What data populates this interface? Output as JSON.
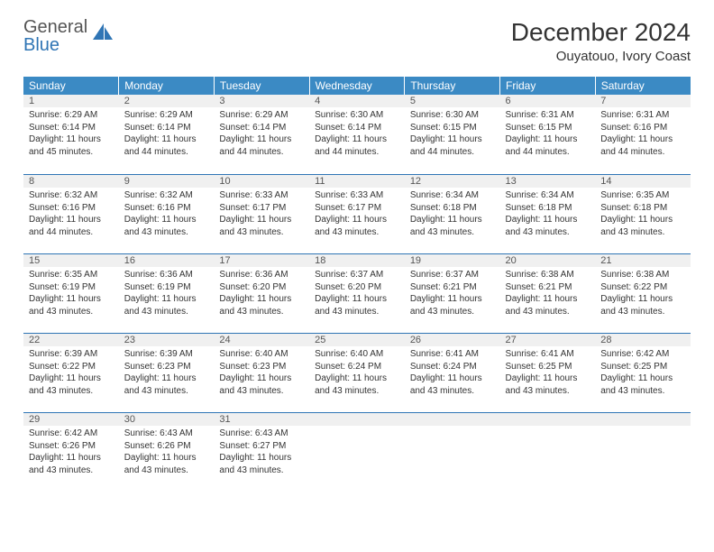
{
  "brand": {
    "line1": "General",
    "line2": "Blue"
  },
  "title": "December 2024",
  "location": "Ouyatouo, Ivory Coast",
  "colors": {
    "header_bg": "#3b8ac4",
    "header_fg": "#ffffff",
    "daynum_bg": "#f0f0f0",
    "rule": "#2f75b5",
    "text": "#333333"
  },
  "typography": {
    "month_title_pt": 28,
    "location_pt": 15,
    "dayhead_pt": 12,
    "body_pt": 10
  },
  "day_headers": [
    "Sunday",
    "Monday",
    "Tuesday",
    "Wednesday",
    "Thursday",
    "Friday",
    "Saturday"
  ],
  "weeks": [
    [
      {
        "n": "1",
        "sunrise": "6:29 AM",
        "sunset": "6:14 PM",
        "daylight": "11 hours and 45 minutes."
      },
      {
        "n": "2",
        "sunrise": "6:29 AM",
        "sunset": "6:14 PM",
        "daylight": "11 hours and 44 minutes."
      },
      {
        "n": "3",
        "sunrise": "6:29 AM",
        "sunset": "6:14 PM",
        "daylight": "11 hours and 44 minutes."
      },
      {
        "n": "4",
        "sunrise": "6:30 AM",
        "sunset": "6:14 PM",
        "daylight": "11 hours and 44 minutes."
      },
      {
        "n": "5",
        "sunrise": "6:30 AM",
        "sunset": "6:15 PM",
        "daylight": "11 hours and 44 minutes."
      },
      {
        "n": "6",
        "sunrise": "6:31 AM",
        "sunset": "6:15 PM",
        "daylight": "11 hours and 44 minutes."
      },
      {
        "n": "7",
        "sunrise": "6:31 AM",
        "sunset": "6:16 PM",
        "daylight": "11 hours and 44 minutes."
      }
    ],
    [
      {
        "n": "8",
        "sunrise": "6:32 AM",
        "sunset": "6:16 PM",
        "daylight": "11 hours and 44 minutes."
      },
      {
        "n": "9",
        "sunrise": "6:32 AM",
        "sunset": "6:16 PM",
        "daylight": "11 hours and 43 minutes."
      },
      {
        "n": "10",
        "sunrise": "6:33 AM",
        "sunset": "6:17 PM",
        "daylight": "11 hours and 43 minutes."
      },
      {
        "n": "11",
        "sunrise": "6:33 AM",
        "sunset": "6:17 PM",
        "daylight": "11 hours and 43 minutes."
      },
      {
        "n": "12",
        "sunrise": "6:34 AM",
        "sunset": "6:18 PM",
        "daylight": "11 hours and 43 minutes."
      },
      {
        "n": "13",
        "sunrise": "6:34 AM",
        "sunset": "6:18 PM",
        "daylight": "11 hours and 43 minutes."
      },
      {
        "n": "14",
        "sunrise": "6:35 AM",
        "sunset": "6:18 PM",
        "daylight": "11 hours and 43 minutes."
      }
    ],
    [
      {
        "n": "15",
        "sunrise": "6:35 AM",
        "sunset": "6:19 PM",
        "daylight": "11 hours and 43 minutes."
      },
      {
        "n": "16",
        "sunrise": "6:36 AM",
        "sunset": "6:19 PM",
        "daylight": "11 hours and 43 minutes."
      },
      {
        "n": "17",
        "sunrise": "6:36 AM",
        "sunset": "6:20 PM",
        "daylight": "11 hours and 43 minutes."
      },
      {
        "n": "18",
        "sunrise": "6:37 AM",
        "sunset": "6:20 PM",
        "daylight": "11 hours and 43 minutes."
      },
      {
        "n": "19",
        "sunrise": "6:37 AM",
        "sunset": "6:21 PM",
        "daylight": "11 hours and 43 minutes."
      },
      {
        "n": "20",
        "sunrise": "6:38 AM",
        "sunset": "6:21 PM",
        "daylight": "11 hours and 43 minutes."
      },
      {
        "n": "21",
        "sunrise": "6:38 AM",
        "sunset": "6:22 PM",
        "daylight": "11 hours and 43 minutes."
      }
    ],
    [
      {
        "n": "22",
        "sunrise": "6:39 AM",
        "sunset": "6:22 PM",
        "daylight": "11 hours and 43 minutes."
      },
      {
        "n": "23",
        "sunrise": "6:39 AM",
        "sunset": "6:23 PM",
        "daylight": "11 hours and 43 minutes."
      },
      {
        "n": "24",
        "sunrise": "6:40 AM",
        "sunset": "6:23 PM",
        "daylight": "11 hours and 43 minutes."
      },
      {
        "n": "25",
        "sunrise": "6:40 AM",
        "sunset": "6:24 PM",
        "daylight": "11 hours and 43 minutes."
      },
      {
        "n": "26",
        "sunrise": "6:41 AM",
        "sunset": "6:24 PM",
        "daylight": "11 hours and 43 minutes."
      },
      {
        "n": "27",
        "sunrise": "6:41 AM",
        "sunset": "6:25 PM",
        "daylight": "11 hours and 43 minutes."
      },
      {
        "n": "28",
        "sunrise": "6:42 AM",
        "sunset": "6:25 PM",
        "daylight": "11 hours and 43 minutes."
      }
    ],
    [
      {
        "n": "29",
        "sunrise": "6:42 AM",
        "sunset": "6:26 PM",
        "daylight": "11 hours and 43 minutes."
      },
      {
        "n": "30",
        "sunrise": "6:43 AM",
        "sunset": "6:26 PM",
        "daylight": "11 hours and 43 minutes."
      },
      {
        "n": "31",
        "sunrise": "6:43 AM",
        "sunset": "6:27 PM",
        "daylight": "11 hours and 43 minutes."
      },
      null,
      null,
      null,
      null
    ]
  ],
  "labels": {
    "sunrise": "Sunrise:",
    "sunset": "Sunset:",
    "daylight": "Daylight:"
  }
}
